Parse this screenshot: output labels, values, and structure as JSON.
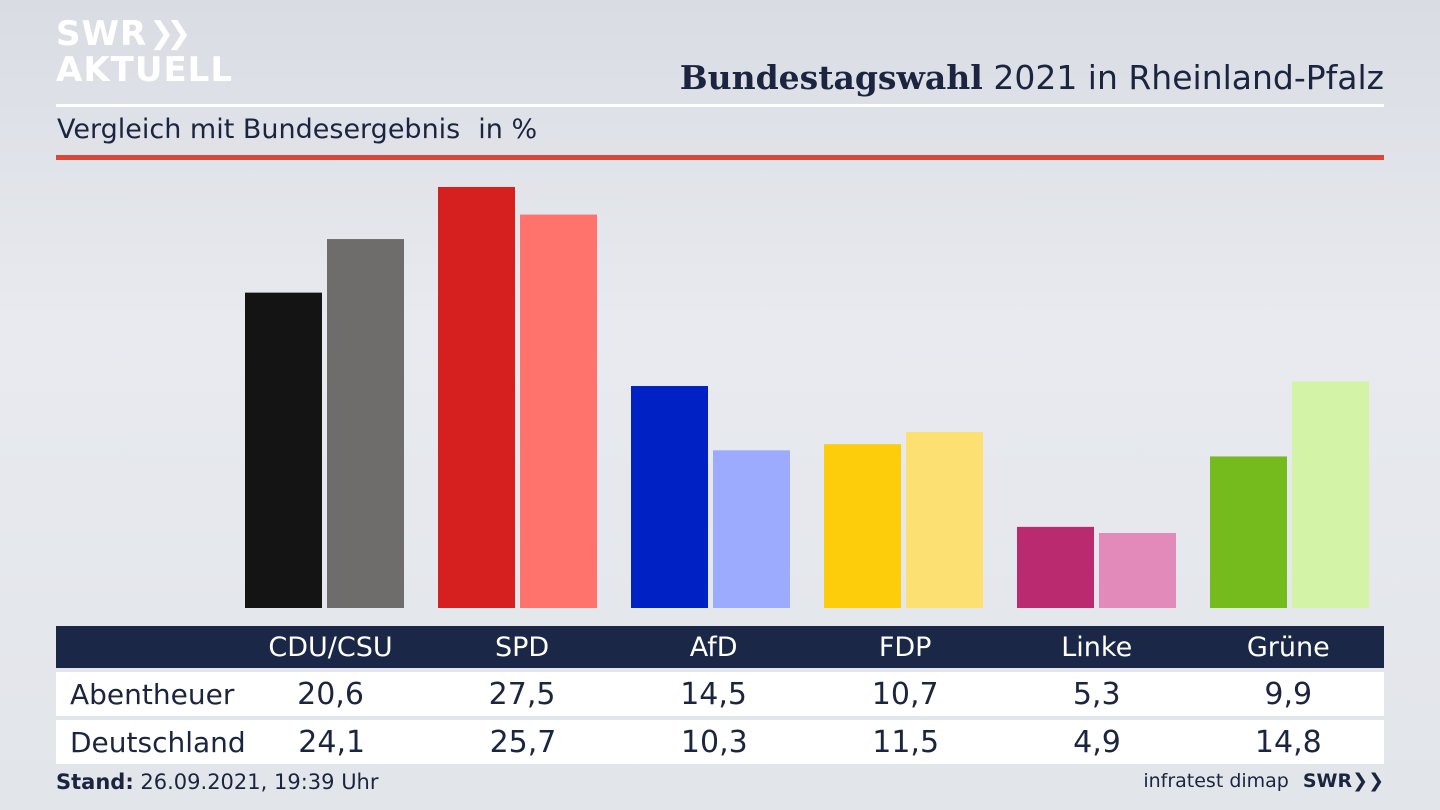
{
  "brand": {
    "line1": "SWR",
    "line2": "AKTUELL",
    "chevrons": "»"
  },
  "header": {
    "title_bold": "Bundestagswahl",
    "title_rest": "2021 in Rheinland-Pfalz"
  },
  "subheader": {
    "text": "Vergleich mit Bundesergebnis",
    "unit": "in %"
  },
  "chart_data": {
    "type": "bar",
    "categories": [
      "CDU/CSU",
      "SPD",
      "AfD",
      "FDP",
      "Linke",
      "Grüne"
    ],
    "series": [
      {
        "name": "Abentheuer",
        "values": [
          20.6,
          27.5,
          14.5,
          10.7,
          5.3,
          9.9
        ],
        "colors": [
          "#141414",
          "#d61f1f",
          "#0022c4",
          "#fdcc0a",
          "#b92a6f",
          "#76bb1e"
        ]
      },
      {
        "name": "Deutschland",
        "values": [
          24.1,
          25.7,
          10.3,
          11.5,
          4.9,
          14.8
        ],
        "colors": [
          "#6e6d6b",
          "#ff736c",
          "#9dabff",
          "#fde072",
          "#e28bba",
          "#d3f4a7"
        ]
      }
    ],
    "ylim": [
      0,
      28
    ]
  },
  "footer": {
    "stand_label": "Stand:",
    "stand_value": "26.09.2021, 19:39 Uhr",
    "source": "infratest dimap",
    "brand": "SWR"
  }
}
